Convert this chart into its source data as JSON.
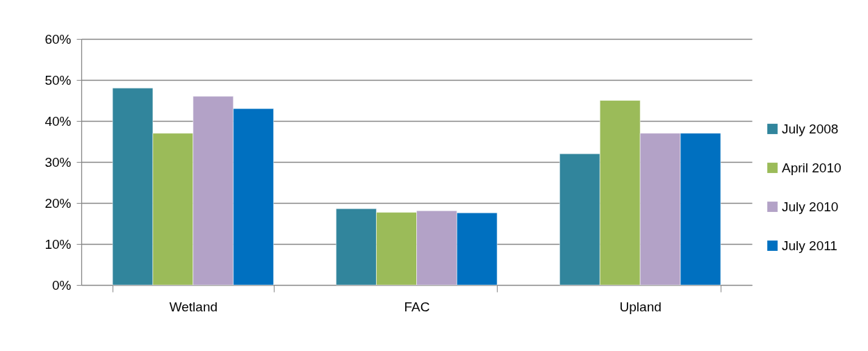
{
  "chart_data": {
    "type": "bar",
    "categories": [
      "Wetland",
      "FAC",
      "Upland"
    ],
    "series": [
      {
        "name": "July 2008",
        "color": "#31859c",
        "values": [
          48,
          18.6,
          32
        ]
      },
      {
        "name": "April 2010",
        "color": "#9bbb59",
        "values": [
          37,
          17.7,
          45
        ]
      },
      {
        "name": "July 2010",
        "color": "#b3a2c7",
        "values": [
          46,
          18.1,
          37
        ]
      },
      {
        "name": "July 2011",
        "color": "#0070c0",
        "values": [
          43,
          17.6,
          37
        ]
      }
    ],
    "ylim": [
      0,
      60
    ],
    "yticks": [
      {
        "value": 0,
        "label": "0%"
      },
      {
        "value": 10,
        "label": "10%"
      },
      {
        "value": 20,
        "label": "20%"
      },
      {
        "value": 30,
        "label": "30%"
      },
      {
        "value": 40,
        "label": "40%"
      },
      {
        "value": 50,
        "label": "50%"
      },
      {
        "value": 60,
        "label": "60%"
      }
    ],
    "grid": "y",
    "legend": "right"
  }
}
